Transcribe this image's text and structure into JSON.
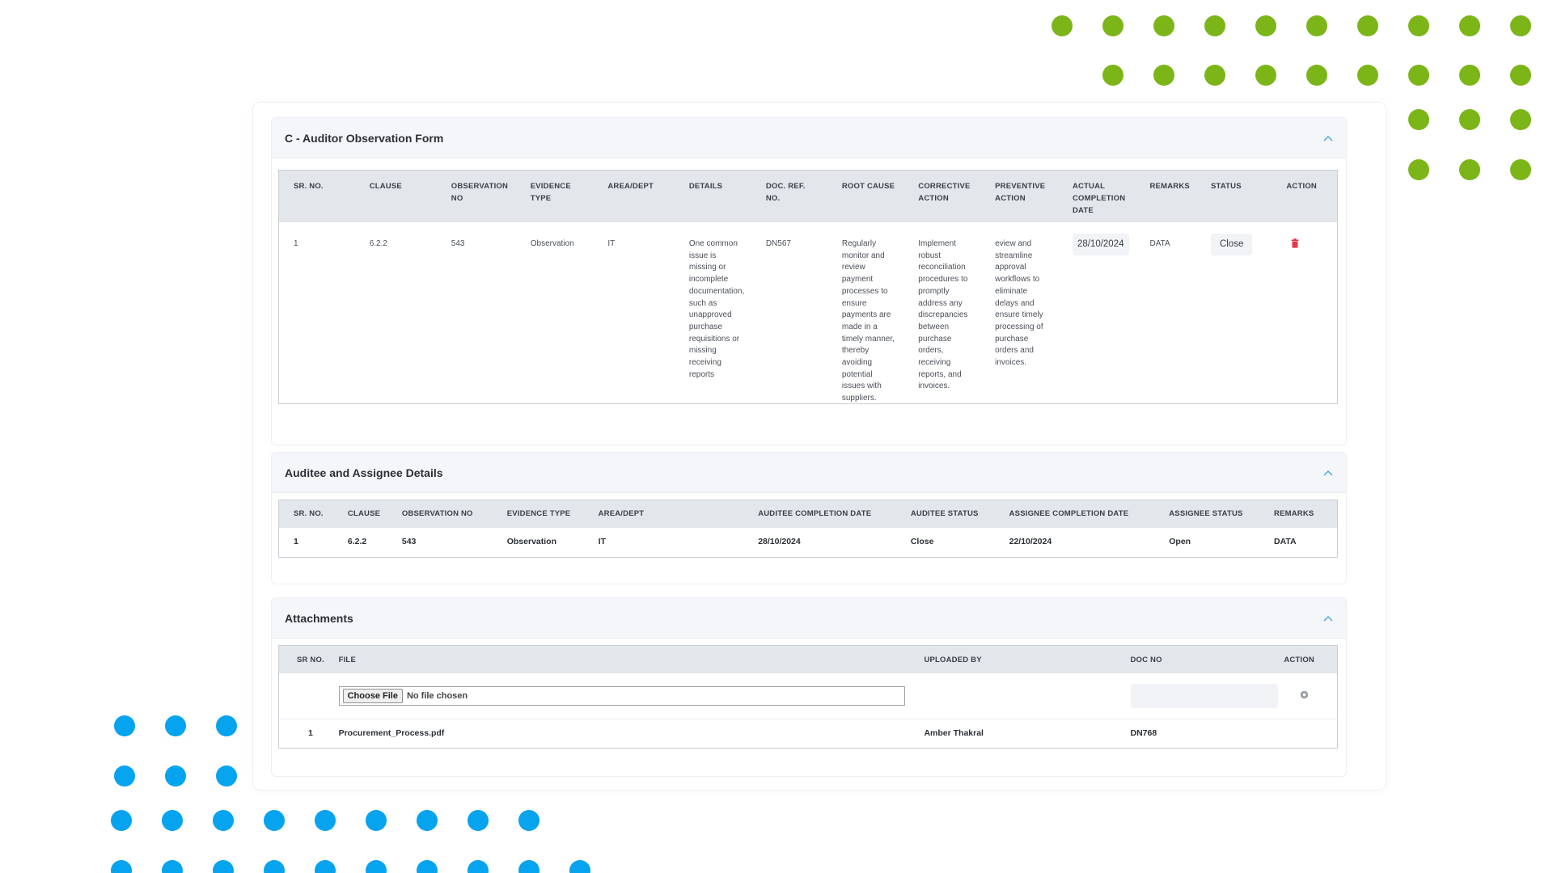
{
  "colors": {
    "green_dot": "#7cb518",
    "blue_dot": "#06a3ee",
    "delete_red": "#e8354a",
    "chevron_blue": "#4aa3df"
  },
  "sections": {
    "observation": {
      "title": "C - Auditor Observation Form",
      "columns": [
        "SR. NO.",
        "CLAUSE",
        "OBSERVATION NO",
        "EVIDENCE TYPE",
        "AREA/DEPT",
        "DETAILS",
        "DOC. REF. NO.",
        "ROOT CAUSE",
        "CORRECTIVE ACTION",
        "PREVENTIVE ACTION",
        "ACTUAL COMPLETION DATE",
        "REMARKS",
        "STATUS",
        "ACTION"
      ],
      "rows": [
        {
          "sr_no": "1",
          "clause": "6.2.2",
          "observation_no": "543",
          "evidence_type": "Observation",
          "area_dept": "IT",
          "details": "One common issue is missing or incomplete documentation, such as unapproved purchase requisitions or missing receiving reports",
          "doc_ref_no": "DN567",
          "root_cause": "Regularly monitor and review payment processes to ensure payments are made in a timely manner, thereby avoiding potential issues with suppliers.",
          "corrective_action": "Implement robust reconciliation procedures to promptly address any discrepancies between purchase orders, receiving reports, and invoices.",
          "preventive_action": "eview and streamline approval workflows to eliminate delays and ensure timely processing of purchase orders and invoices.",
          "actual_completion_date": "28/10/2024",
          "remarks": "DATA",
          "status": "Close",
          "action_icon": "trash-icon"
        }
      ]
    },
    "auditee": {
      "title": "Auditee and Assignee Details",
      "columns": [
        "SR. NO.",
        "CLAUSE",
        "OBSERVATION NO",
        "EVIDENCE TYPE",
        "AREA/DEPT",
        "AUDITEE COMPLETION DATE",
        "AUDITEE STATUS",
        "ASSIGNEE COMPLETION DATE",
        "ASSIGNEE STATUS",
        "REMARKS"
      ],
      "rows": [
        {
          "sr_no": "1",
          "clause": "6.2.2",
          "observation_no": "543",
          "evidence_type": "Observation",
          "area_dept": "IT",
          "auditee_completion_date": "28/10/2024",
          "auditee_status": "Close",
          "assignee_completion_date": "22/10/2024",
          "assignee_status": "Open",
          "remarks": "DATA"
        }
      ]
    },
    "attachments": {
      "title": "Attachments",
      "columns": [
        "SR NO.",
        "FILE",
        "UPLOADED BY",
        "DOC NO",
        "ACTION"
      ],
      "upload": {
        "button_label": "Choose File",
        "status": "No file chosen",
        "doc_no_placeholder": ""
      },
      "rows": [
        {
          "sr_no": "1",
          "file": "Procurement_Process.pdf",
          "uploaded_by": "Amber Thakral",
          "doc_no": "DN768"
        }
      ]
    }
  }
}
